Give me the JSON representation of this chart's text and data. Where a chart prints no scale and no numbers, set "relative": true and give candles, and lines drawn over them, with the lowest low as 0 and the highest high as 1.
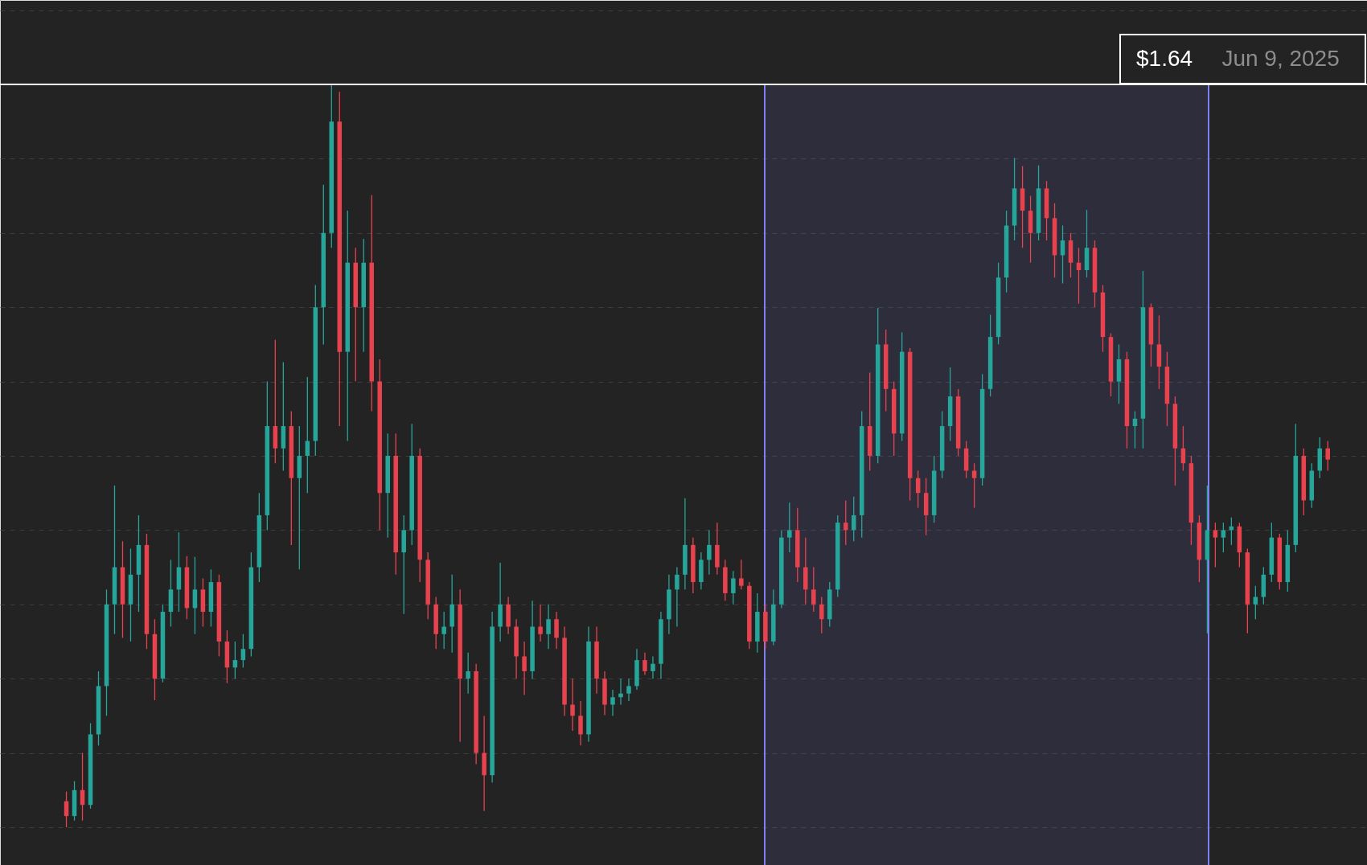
{
  "chart_data": {
    "type": "candlestick",
    "relative": true,
    "grid": "y",
    "categories": [
      null,
      null,
      null,
      null,
      null,
      null,
      null,
      null,
      null,
      null,
      null,
      null,
      null,
      null,
      null,
      null,
      null,
      null,
      null,
      null,
      null,
      null,
      null,
      null,
      null,
      null,
      null,
      null,
      null,
      null,
      null,
      null,
      null,
      null,
      null,
      null,
      null,
      null,
      null,
      null,
      null,
      null,
      null,
      null,
      null,
      null,
      null,
      null,
      null,
      null,
      null,
      null,
      null,
      null,
      null,
      null,
      null,
      null,
      null,
      null,
      null,
      null,
      null,
      null,
      null,
      null,
      null,
      null,
      null,
      null,
      null,
      null,
      null,
      null,
      null,
      null,
      null,
      null,
      null,
      null,
      null,
      null,
      null,
      null,
      null,
      null,
      null,
      null,
      null,
      null,
      null,
      null,
      null,
      null,
      null,
      null,
      null,
      null,
      null,
      null,
      null,
      null,
      null,
      null,
      null,
      null,
      null,
      null,
      null,
      null,
      null,
      null,
      null,
      null,
      null,
      null,
      null,
      null,
      null,
      null,
      null,
      null,
      null,
      null,
      null,
      null,
      null,
      null,
      null,
      null,
      null,
      null,
      null,
      null,
      null,
      null,
      null,
      null,
      null,
      null,
      null,
      null,
      null,
      null,
      null,
      null,
      null,
      null,
      null,
      null,
      null,
      null,
      null,
      null,
      null,
      null,
      null,
      null
    ],
    "ohlc": [
      [
        0.035,
        0.048,
        0.0,
        0.015
      ],
      [
        0.015,
        0.062,
        0.009,
        0.05
      ],
      [
        0.05,
        0.1,
        0.009,
        0.03
      ],
      [
        0.03,
        0.14,
        0.025,
        0.125
      ],
      [
        0.125,
        0.21,
        0.11,
        0.19
      ],
      [
        0.19,
        0.32,
        0.15,
        0.3
      ],
      [
        0.3,
        0.46,
        0.26,
        0.35
      ],
      [
        0.35,
        0.385,
        0.255,
        0.3
      ],
      [
        0.3,
        0.375,
        0.25,
        0.34
      ],
      [
        0.34,
        0.42,
        0.29,
        0.38
      ],
      [
        0.38,
        0.395,
        0.24,
        0.26
      ],
      [
        0.26,
        0.28,
        0.171,
        0.2
      ],
      [
        0.2,
        0.3,
        0.195,
        0.29
      ],
      [
        0.29,
        0.36,
        0.27,
        0.32
      ],
      [
        0.32,
        0.397,
        0.29,
        0.35
      ],
      [
        0.35,
        0.365,
        0.28,
        0.295
      ],
      [
        0.295,
        0.364,
        0.26,
        0.32
      ],
      [
        0.32,
        0.335,
        0.27,
        0.29
      ],
      [
        0.29,
        0.347,
        0.27,
        0.33
      ],
      [
        0.33,
        0.34,
        0.23,
        0.25
      ],
      [
        0.25,
        0.265,
        0.194,
        0.215
      ],
      [
        0.215,
        0.25,
        0.2,
        0.225
      ],
      [
        0.225,
        0.26,
        0.215,
        0.24
      ],
      [
        0.24,
        0.37,
        0.23,
        0.35
      ],
      [
        0.35,
        0.45,
        0.33,
        0.42
      ],
      [
        0.42,
        0.6,
        0.4,
        0.54
      ],
      [
        0.54,
        0.656,
        0.49,
        0.51
      ],
      [
        0.51,
        0.626,
        0.48,
        0.54
      ],
      [
        0.54,
        0.56,
        0.38,
        0.47
      ],
      [
        0.47,
        0.54,
        0.347,
        0.5
      ],
      [
        0.5,
        0.606,
        0.45,
        0.52
      ],
      [
        0.52,
        0.73,
        0.5,
        0.7
      ],
      [
        0.7,
        0.865,
        0.65,
        0.8
      ],
      [
        0.8,
        1.0,
        0.78,
        0.95
      ],
      [
        0.95,
        0.99,
        0.54,
        0.64
      ],
      [
        0.64,
        0.83,
        0.52,
        0.76
      ],
      [
        0.76,
        0.78,
        0.6,
        0.7
      ],
      [
        0.7,
        0.792,
        0.64,
        0.76
      ],
      [
        0.76,
        0.851,
        0.56,
        0.6
      ],
      [
        0.6,
        0.63,
        0.4,
        0.45
      ],
      [
        0.45,
        0.53,
        0.39,
        0.5
      ],
      [
        0.5,
        0.53,
        0.34,
        0.37
      ],
      [
        0.37,
        0.42,
        0.287,
        0.4
      ],
      [
        0.4,
        0.543,
        0.38,
        0.5
      ],
      [
        0.5,
        0.51,
        0.33,
        0.36
      ],
      [
        0.36,
        0.37,
        0.28,
        0.3
      ],
      [
        0.3,
        0.31,
        0.24,
        0.26
      ],
      [
        0.26,
        0.29,
        0.24,
        0.27
      ],
      [
        0.27,
        0.34,
        0.235,
        0.3
      ],
      [
        0.3,
        0.32,
        0.115,
        0.2
      ],
      [
        0.2,
        0.235,
        0.18,
        0.21
      ],
      [
        0.21,
        0.22,
        0.085,
        0.1
      ],
      [
        0.1,
        0.15,
        0.022,
        0.07
      ],
      [
        0.07,
        0.29,
        0.06,
        0.27
      ],
      [
        0.27,
        0.356,
        0.25,
        0.3
      ],
      [
        0.3,
        0.31,
        0.26,
        0.27
      ],
      [
        0.27,
        0.28,
        0.2,
        0.23
      ],
      [
        0.23,
        0.25,
        0.178,
        0.21
      ],
      [
        0.21,
        0.305,
        0.2,
        0.27
      ],
      [
        0.27,
        0.3,
        0.25,
        0.26
      ],
      [
        0.26,
        0.3,
        0.24,
        0.28
      ],
      [
        0.28,
        0.29,
        0.24,
        0.255
      ],
      [
        0.255,
        0.27,
        0.15,
        0.165
      ],
      [
        0.165,
        0.2,
        0.13,
        0.15
      ],
      [
        0.15,
        0.17,
        0.11,
        0.125
      ],
      [
        0.125,
        0.27,
        0.115,
        0.25
      ],
      [
        0.25,
        0.27,
        0.18,
        0.2
      ],
      [
        0.2,
        0.21,
        0.151,
        0.165
      ],
      [
        0.165,
        0.185,
        0.15,
        0.175
      ],
      [
        0.175,
        0.2,
        0.165,
        0.18
      ],
      [
        0.18,
        0.2,
        0.17,
        0.19
      ],
      [
        0.19,
        0.24,
        0.185,
        0.225
      ],
      [
        0.225,
        0.235,
        0.205,
        0.21
      ],
      [
        0.21,
        0.23,
        0.2,
        0.22
      ],
      [
        0.22,
        0.29,
        0.2,
        0.28
      ],
      [
        0.28,
        0.34,
        0.26,
        0.32
      ],
      [
        0.32,
        0.35,
        0.27,
        0.34
      ],
      [
        0.34,
        0.443,
        0.32,
        0.38
      ],
      [
        0.38,
        0.39,
        0.315,
        0.33
      ],
      [
        0.33,
        0.37,
        0.32,
        0.36
      ],
      [
        0.36,
        0.4,
        0.34,
        0.38
      ],
      [
        0.38,
        0.41,
        0.34,
        0.35
      ],
      [
        0.35,
        0.36,
        0.305,
        0.315
      ],
      [
        0.315,
        0.345,
        0.3,
        0.335
      ],
      [
        0.335,
        0.36,
        0.32,
        0.325
      ],
      [
        0.325,
        0.33,
        0.24,
        0.25
      ],
      [
        0.25,
        0.315,
        0.235,
        0.29
      ],
      [
        0.29,
        0.3,
        0.24,
        0.25
      ],
      [
        0.25,
        0.32,
        0.245,
        0.3
      ],
      [
        0.3,
        0.4,
        0.295,
        0.39
      ],
      [
        0.39,
        0.437,
        0.37,
        0.4
      ],
      [
        0.4,
        0.43,
        0.33,
        0.35
      ],
      [
        0.35,
        0.39,
        0.3,
        0.32
      ],
      [
        0.32,
        0.35,
        0.29,
        0.3
      ],
      [
        0.3,
        0.31,
        0.261,
        0.28
      ],
      [
        0.28,
        0.33,
        0.27,
        0.32
      ],
      [
        0.32,
        0.42,
        0.31,
        0.41
      ],
      [
        0.41,
        0.44,
        0.38,
        0.4
      ],
      [
        0.4,
        0.445,
        0.385,
        0.42
      ],
      [
        0.42,
        0.56,
        0.39,
        0.54
      ],
      [
        0.54,
        0.612,
        0.48,
        0.5
      ],
      [
        0.5,
        0.699,
        0.49,
        0.65
      ],
      [
        0.65,
        0.67,
        0.56,
        0.59
      ],
      [
        0.59,
        0.6,
        0.5,
        0.53
      ],
      [
        0.53,
        0.666,
        0.52,
        0.64
      ],
      [
        0.64,
        0.645,
        0.44,
        0.47
      ],
      [
        0.47,
        0.48,
        0.43,
        0.45
      ],
      [
        0.45,
        0.47,
        0.393,
        0.42
      ],
      [
        0.42,
        0.5,
        0.41,
        0.48
      ],
      [
        0.48,
        0.56,
        0.47,
        0.54
      ],
      [
        0.54,
        0.619,
        0.52,
        0.58
      ],
      [
        0.58,
        0.59,
        0.5,
        0.51
      ],
      [
        0.51,
        0.52,
        0.47,
        0.48
      ],
      [
        0.48,
        0.49,
        0.43,
        0.47
      ],
      [
        0.47,
        0.61,
        0.46,
        0.59
      ],
      [
        0.59,
        0.69,
        0.58,
        0.66
      ],
      [
        0.66,
        0.76,
        0.65,
        0.74
      ],
      [
        0.74,
        0.83,
        0.72,
        0.81
      ],
      [
        0.81,
        0.901,
        0.79,
        0.86
      ],
      [
        0.86,
        0.89,
        0.78,
        0.83
      ],
      [
        0.83,
        0.85,
        0.76,
        0.8
      ],
      [
        0.8,
        0.891,
        0.79,
        0.86
      ],
      [
        0.86,
        0.87,
        0.79,
        0.82
      ],
      [
        0.82,
        0.84,
        0.74,
        0.77
      ],
      [
        0.77,
        0.81,
        0.732,
        0.79
      ],
      [
        0.79,
        0.8,
        0.74,
        0.76
      ],
      [
        0.76,
        0.78,
        0.705,
        0.75
      ],
      [
        0.75,
        0.831,
        0.74,
        0.78
      ],
      [
        0.78,
        0.79,
        0.7,
        0.72
      ],
      [
        0.72,
        0.73,
        0.64,
        0.66
      ],
      [
        0.66,
        0.665,
        0.58,
        0.6
      ],
      [
        0.6,
        0.65,
        0.57,
        0.63
      ],
      [
        0.63,
        0.64,
        0.51,
        0.54
      ],
      [
        0.54,
        0.56,
        0.51,
        0.55
      ],
      [
        0.55,
        0.749,
        0.51,
        0.7
      ],
      [
        0.7,
        0.705,
        0.62,
        0.65
      ],
      [
        0.65,
        0.689,
        0.59,
        0.62
      ],
      [
        0.62,
        0.64,
        0.54,
        0.57
      ],
      [
        0.57,
        0.58,
        0.46,
        0.51
      ],
      [
        0.51,
        0.54,
        0.48,
        0.49
      ],
      [
        0.49,
        0.5,
        0.38,
        0.41
      ],
      [
        0.41,
        0.42,
        0.33,
        0.36
      ],
      [
        0.36,
        0.46,
        0.261,
        0.4
      ],
      [
        0.4,
        0.41,
        0.35,
        0.39
      ],
      [
        0.39,
        0.41,
        0.37,
        0.4
      ],
      [
        0.4,
        0.417,
        0.38,
        0.405
      ],
      [
        0.405,
        0.41,
        0.35,
        0.37
      ],
      [
        0.37,
        0.375,
        0.261,
        0.3
      ],
      [
        0.3,
        0.325,
        0.28,
        0.31
      ],
      [
        0.31,
        0.35,
        0.3,
        0.34
      ],
      [
        0.34,
        0.41,
        0.33,
        0.39
      ],
      [
        0.39,
        0.395,
        0.32,
        0.33
      ],
      [
        0.33,
        0.4,
        0.317,
        0.38
      ],
      [
        0.38,
        0.543,
        0.37,
        0.5
      ],
      [
        0.5,
        0.51,
        0.42,
        0.44
      ],
      [
        0.44,
        0.49,
        0.43,
        0.48
      ],
      [
        0.48,
        0.525,
        0.47,
        0.51
      ],
      [
        0.51,
        0.52,
        0.48,
        0.495
      ]
    ],
    "colors": [
      "#e8424f",
      "#26a69a",
      "#e8424f",
      "#26a69a",
      "#26a69a",
      "#26a69a",
      "#26a69a",
      "#e8424f",
      "#26a69a",
      "#26a69a",
      "#e8424f",
      "#e8424f",
      "#26a69a",
      "#26a69a",
      "#26a69a",
      "#e8424f",
      "#26a69a",
      "#e8424f",
      "#26a69a",
      "#e8424f",
      "#e8424f",
      "#26a69a",
      "#26a69a",
      "#26a69a",
      "#26a69a",
      "#26a69a",
      "#e8424f",
      "#26a69a",
      "#e8424f",
      "#26a69a",
      "#26a69a",
      "#26a69a",
      "#26a69a",
      "#26a69a",
      "#e8424f",
      "#26a69a",
      "#e8424f",
      "#26a69a",
      "#e8424f",
      "#e8424f",
      "#26a69a",
      "#e8424f",
      "#26a69a",
      "#26a69a",
      "#e8424f",
      "#e8424f",
      "#e8424f",
      "#26a69a",
      "#26a69a",
      "#e8424f",
      "#26a69a",
      "#e8424f",
      "#e8424f",
      "#26a69a",
      "#26a69a",
      "#e8424f",
      "#e8424f",
      "#e8424f",
      "#26a69a",
      "#e8424f",
      "#26a69a",
      "#e8424f",
      "#e8424f",
      "#e8424f",
      "#e8424f",
      "#26a69a",
      "#e8424f",
      "#e8424f",
      "#26a69a",
      "#26a69a",
      "#26a69a",
      "#26a69a",
      "#e8424f",
      "#26a69a",
      "#26a69a",
      "#26a69a",
      "#26a69a",
      "#26a69a",
      "#e8424f",
      "#26a69a",
      "#26a69a",
      "#e8424f",
      "#e8424f",
      "#26a69a",
      "#e8424f",
      "#e8424f",
      "#26a69a",
      "#e8424f",
      "#26a69a",
      "#26a69a",
      "#26a69a",
      "#e8424f",
      "#e8424f",
      "#e8424f",
      "#e8424f",
      "#26a69a",
      "#26a69a",
      "#e8424f",
      "#26a69a",
      "#26a69a",
      "#e8424f",
      "#26a69a",
      "#e8424f",
      "#e8424f",
      "#26a69a",
      "#e8424f",
      "#e8424f",
      "#e8424f",
      "#26a69a",
      "#26a69a",
      "#26a69a",
      "#e8424f",
      "#e8424f",
      "#e8424f",
      "#26a69a",
      "#26a69a",
      "#26a69a",
      "#26a69a",
      "#26a69a",
      "#e8424f",
      "#e8424f",
      "#26a69a",
      "#e8424f",
      "#e8424f",
      "#26a69a",
      "#e8424f",
      "#e8424f",
      "#26a69a",
      "#e8424f",
      "#e8424f",
      "#e8424f",
      "#26a69a",
      "#e8424f",
      "#26a69a",
      "#26a69a",
      "#e8424f",
      "#e8424f",
      "#e8424f",
      "#e8424f",
      "#e8424f",
      "#e8424f",
      "#e8424f",
      "#26a69a",
      "#e8424f",
      "#26a69a",
      "#26a69a",
      "#e8424f",
      "#e8424f",
      "#26a69a",
      "#26a69a",
      "#26a69a",
      "#e8424f",
      "#26a69a",
      "#26a69a",
      "#e8424f",
      "#26a69a",
      "#26a69a",
      "#e8424f"
    ],
    "ref_lines": [
      {
        "axis": "y",
        "value": 1,
        "color": "#ffffff"
      }
    ],
    "annotations": [
      "$1.64",
      "Jun 9, 2025"
    ]
  }
}
